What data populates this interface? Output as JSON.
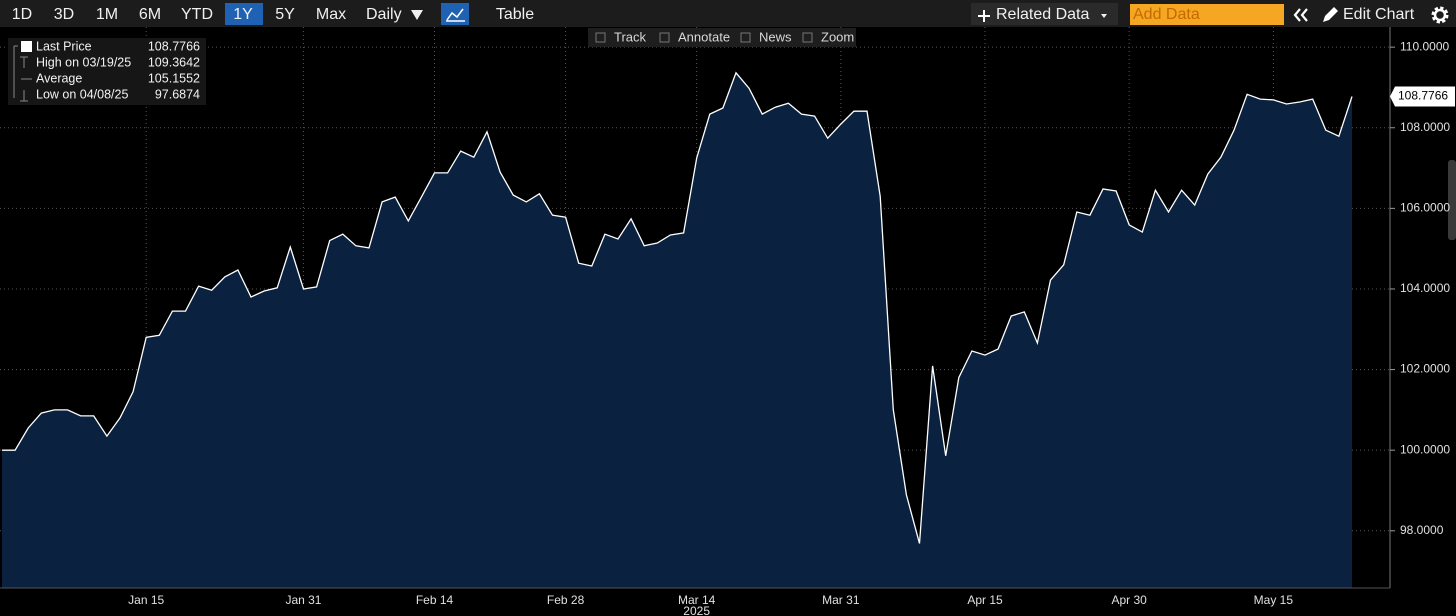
{
  "toolbar": {
    "ranges": [
      "1D",
      "3D",
      "1M",
      "6M",
      "YTD",
      "1Y",
      "5Y",
      "Max"
    ],
    "interval": "Daily",
    "view": "Table",
    "related": "Related Data",
    "add_placeholder": "Add Data",
    "edit": "Edit Chart"
  },
  "chart_tools": [
    "Track",
    "Annotate",
    "News",
    "Zoom"
  ],
  "chart_data": {
    "type": "area",
    "stats": [
      {
        "label": "Last Price",
        "value": 108.7766
      },
      {
        "label": "High on 03/19/25",
        "value": 109.3642
      },
      {
        "label": "Average",
        "value": 105.1552
      },
      {
        "label": "Low on 04/08/25",
        "value": 97.6874
      }
    ],
    "categories": [
      null,
      null,
      null,
      null,
      null,
      null,
      null,
      null,
      null,
      null,
      null,
      "Jan 15",
      null,
      null,
      null,
      null,
      null,
      null,
      null,
      null,
      null,
      null,
      null,
      "Jan 31",
      null,
      null,
      null,
      null,
      null,
      null,
      null,
      null,
      null,
      "Feb 14",
      null,
      null,
      null,
      null,
      null,
      null,
      null,
      null,
      null,
      "Feb 28",
      null,
      null,
      null,
      null,
      null,
      null,
      null,
      null,
      null,
      "Mar 14",
      null,
      null,
      null,
      null,
      null,
      null,
      null,
      null,
      null,
      null,
      "Mar 31",
      null,
      null,
      null,
      null,
      null,
      null,
      null,
      null,
      null,
      null,
      "Apr 15",
      null,
      null,
      null,
      null,
      null,
      null,
      null,
      null,
      null,
      null,
      "Apr 30",
      null,
      null,
      null,
      null,
      null,
      null,
      null,
      null,
      null,
      null,
      "May 15",
      null,
      null,
      null,
      null,
      null,
      null
    ],
    "xlabel": "2025",
    "values": [
      100.0,
      100.0,
      100.55,
      100.92,
      101.0,
      101.0,
      100.85,
      100.85,
      100.35,
      100.8,
      101.45,
      102.8,
      102.85,
      103.45,
      103.45,
      104.07,
      103.97,
      104.3,
      104.47,
      103.8,
      103.95,
      104.03,
      105.04,
      104.0,
      104.05,
      105.2,
      105.36,
      105.07,
      105.02,
      106.16,
      106.28,
      105.69,
      106.28,
      106.88,
      106.88,
      107.42,
      107.27,
      107.9,
      106.9,
      106.33,
      106.16,
      106.36,
      105.83,
      105.78,
      104.64,
      104.57,
      105.36,
      105.24,
      105.74,
      105.07,
      105.14,
      105.34,
      105.39,
      107.25,
      108.34,
      108.49,
      109.3642,
      108.98,
      108.34,
      108.51,
      108.61,
      108.34,
      108.29,
      107.74,
      108.09,
      108.41,
      108.41,
      106.3,
      101.0,
      98.89,
      97.6874,
      102.09,
      99.86,
      101.8,
      102.46,
      102.36,
      102.51,
      103.33,
      103.43,
      102.66,
      104.22,
      104.6,
      105.91,
      105.83,
      106.48,
      106.43,
      105.59,
      105.41,
      106.45,
      105.91,
      106.45,
      106.08,
      106.85,
      107.27,
      107.94,
      108.83,
      108.71,
      108.69,
      108.59,
      108.64,
      108.71,
      107.94,
      107.79,
      108.7766
    ],
    "color": "#0a2240",
    "line_color": "#ffffff",
    "ylim": [
      96.58,
      110.5
    ],
    "yticks": [
      {
        "value": 98,
        "label": "98.0000"
      },
      {
        "value": 100,
        "label": "100.0000"
      },
      {
        "value": 102,
        "label": "102.0000"
      },
      {
        "value": 104,
        "label": "104.0000"
      },
      {
        "value": 106,
        "label": "106.0000"
      },
      {
        "value": 108,
        "label": "108.0000"
      },
      {
        "value": 110,
        "label": "110.0000"
      }
    ],
    "grid": true
  }
}
